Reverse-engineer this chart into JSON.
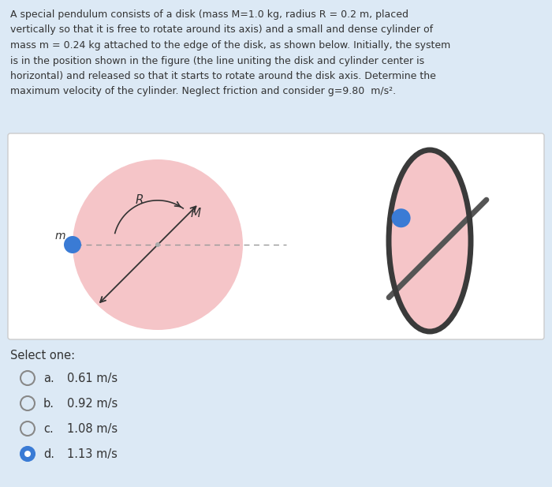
{
  "bg_color": "#dce9f5",
  "panel_bg": "#ffffff",
  "disk_color": "#f5c5c8",
  "cylinder_color": "#3a7bd5",
  "dashed_color": "#999999",
  "arrow_color": "#333333",
  "text_color": "#333333",
  "title_lines": [
    "A special pendulum consists of a disk (mass M=1.0 kg, radius R = 0.2 m, placed",
    "vertically so that it is free to rotate around its axis) and a small and dense cylinder of",
    "mass m = 0.24 kg attached to the edge of the disk, as shown below. Initially, the system",
    "is in the position shown in the figure (the line uniting the disk and cylinder center is",
    "horizontal) and released so that it starts to rotate around the disk axis. Determine the",
    "maximum velocity of the cylinder. Neglect friction and consider g=9.80  m/s²."
  ],
  "select_text": "Select one:",
  "options": [
    {
      "label": "a.",
      "text": "0.61 m/s",
      "selected": false
    },
    {
      "label": "b.",
      "text": "0.92 m/s",
      "selected": false
    },
    {
      "label": "c.",
      "text": "1.08 m/s",
      "selected": false
    },
    {
      "label": "d.",
      "text": "1.13 m/s",
      "selected": true
    }
  ]
}
